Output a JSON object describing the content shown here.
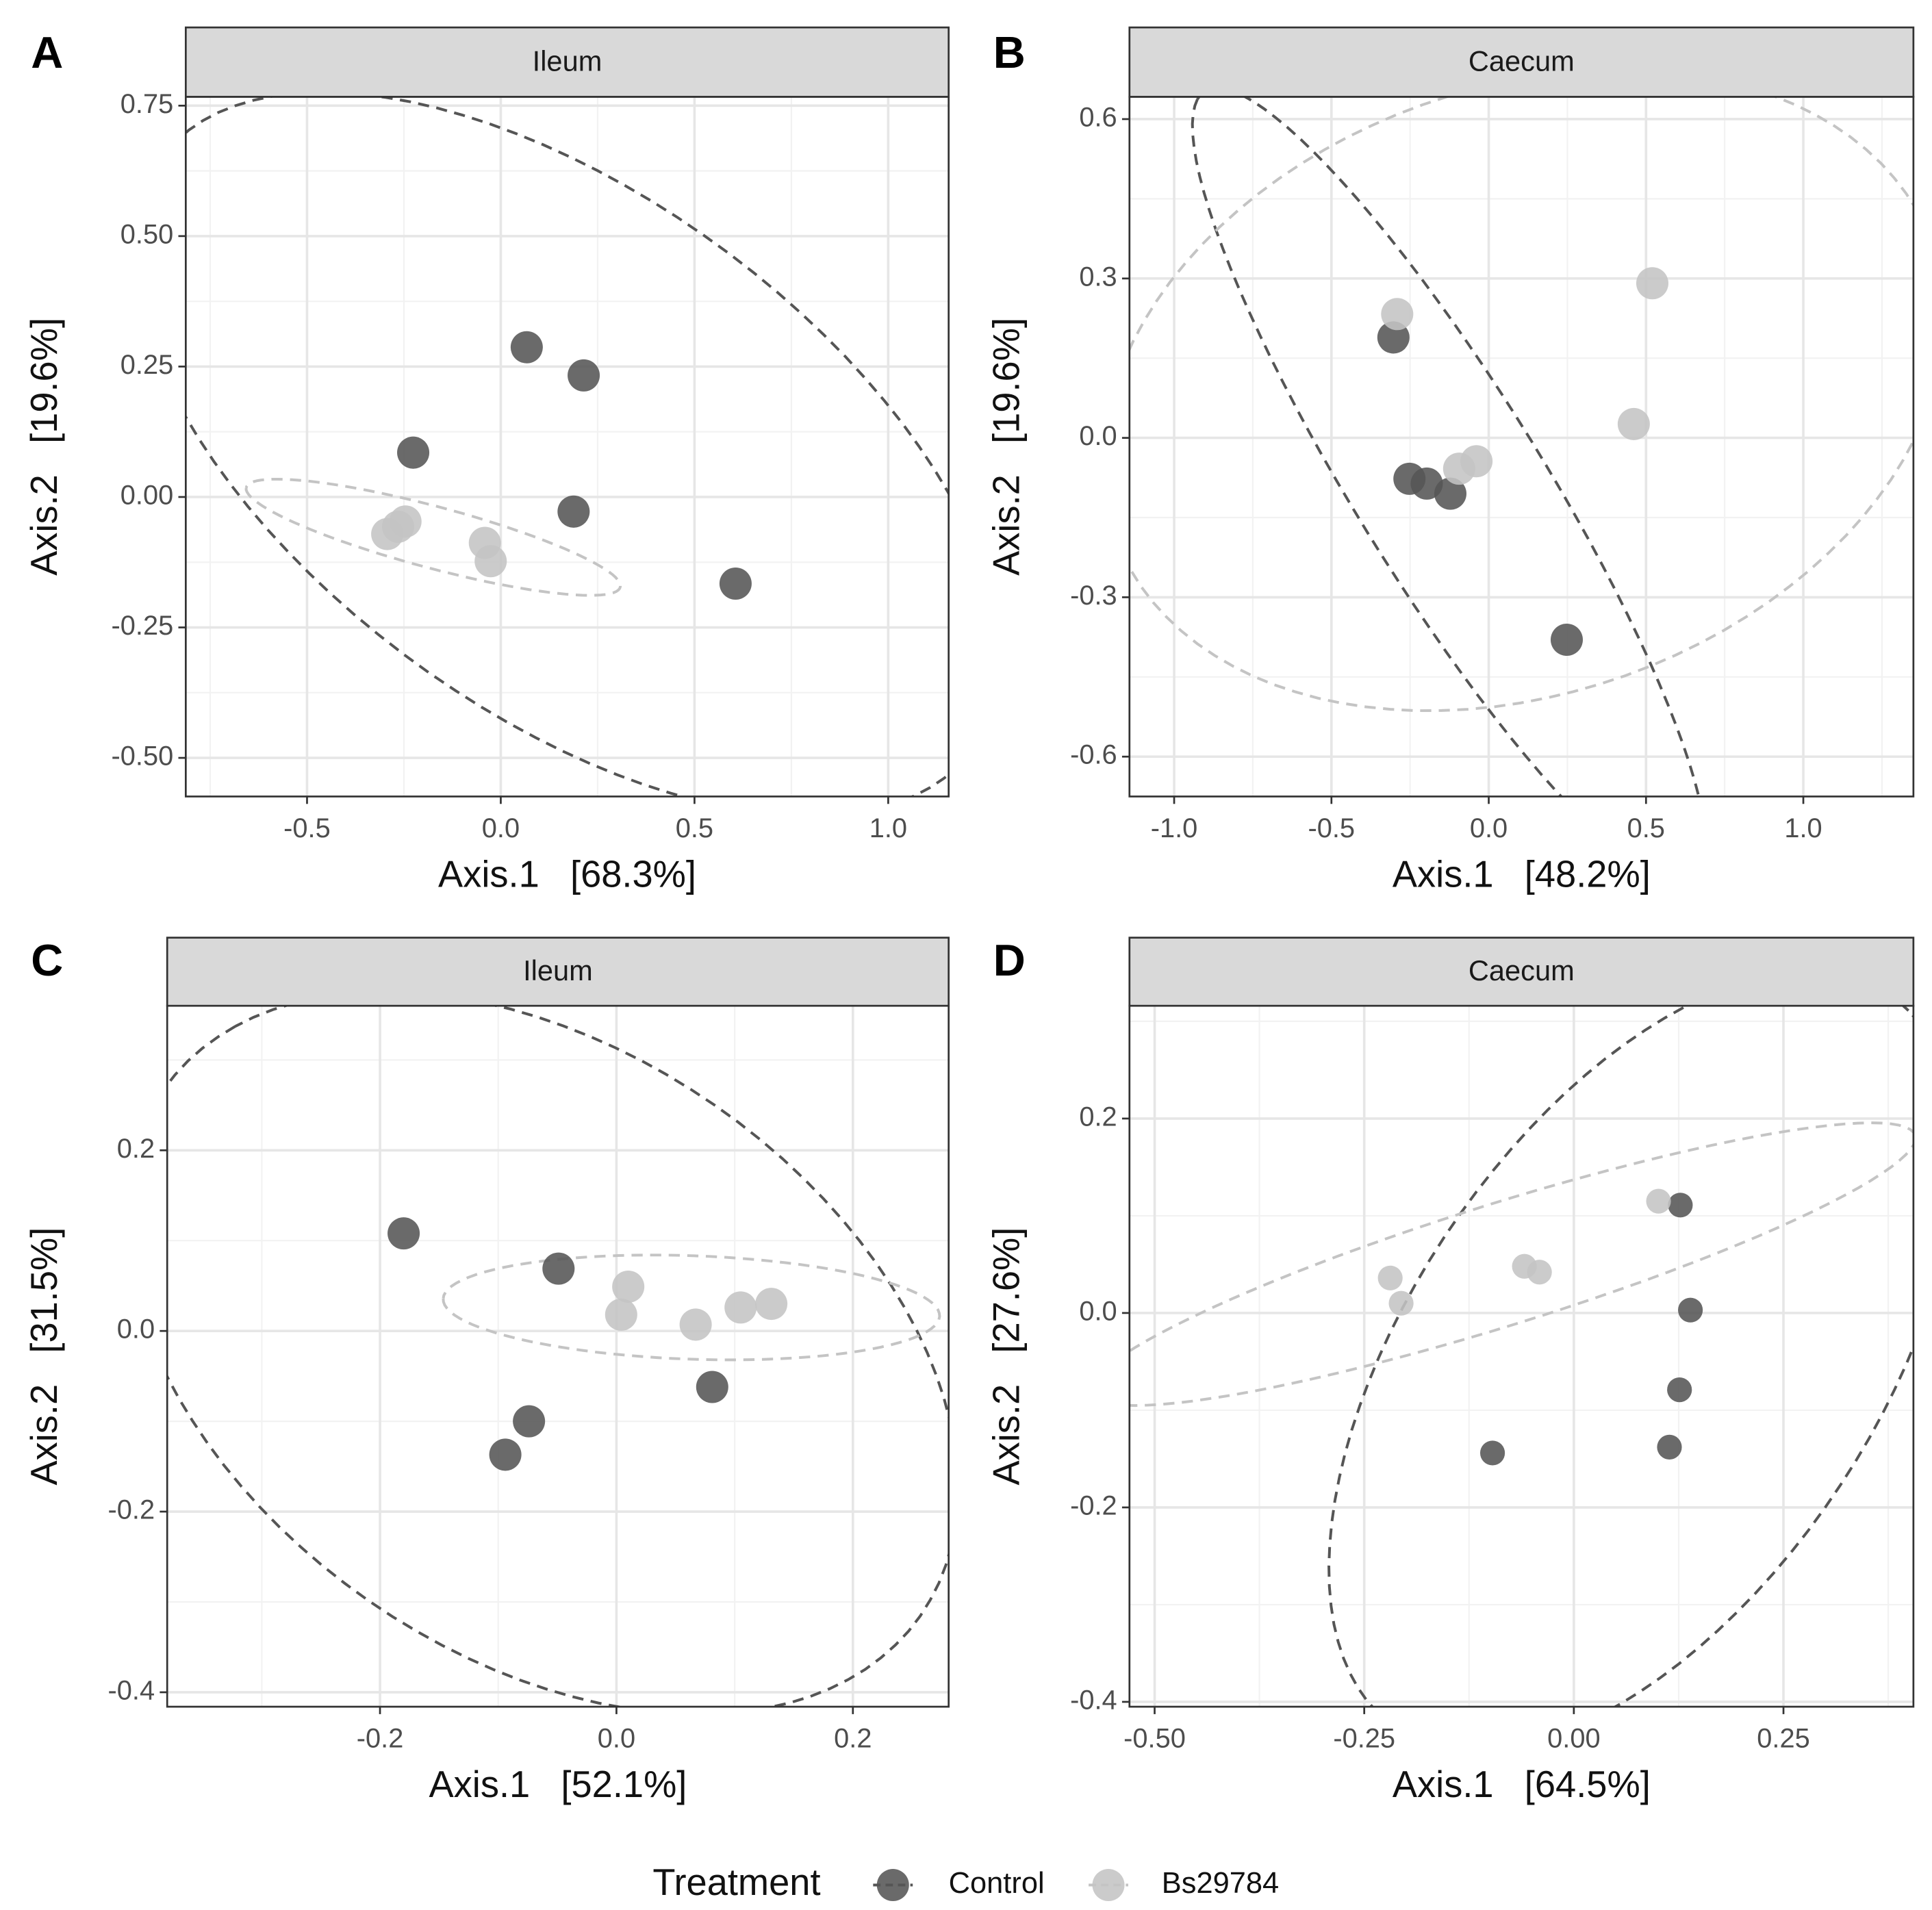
{
  "chart_data": [
    {
      "type": "scatter",
      "panel_label": "A",
      "strip": "Ileum",
      "x_label": "Axis.1   [68.3%]",
      "y_label": "Axis.2   [19.6%]",
      "xlim": [
        -0.813,
        1.156
      ],
      "ylim": [
        -0.574,
        0.767
      ],
      "xticks": [
        {
          "value": -0.5,
          "label": "-0.5"
        },
        {
          "value": 0,
          "label": "0.0"
        },
        {
          "value": 0.5,
          "label": "0.5"
        },
        {
          "value": 1,
          "label": "1.0"
        }
      ],
      "yticks": [
        {
          "value": -0.5,
          "label": "-0.50"
        },
        {
          "value": -0.25,
          "label": "-0.25"
        },
        {
          "value": 0,
          "label": "0.00"
        },
        {
          "value": 0.25,
          "label": "0.25"
        },
        {
          "value": 0.5,
          "label": "0.50"
        },
        {
          "value": 0.75,
          "label": "0.75"
        }
      ],
      "grid": true,
      "series": [
        {
          "name": "Control",
          "color": "#555555",
          "x": [
            0.067,
            0.214,
            -0.226,
            0.188,
            0.606
          ],
          "values": [
            0.287,
            0.233,
            0.085,
            -0.028,
            -0.166
          ]
        },
        {
          "name": "Bs29784",
          "color": "#c4c4c4",
          "x": [
            -0.293,
            -0.265,
            -0.246,
            -0.041,
            -0.026
          ],
          "values": [
            -0.071,
            -0.057,
            -0.047,
            -0.088,
            -0.123
          ]
        }
      ]
    },
    {
      "type": "scatter",
      "panel_label": "B",
      "strip": "Caecum",
      "x_label": "Axis.1   [48.2%]",
      "y_label": "Axis.2   [19.6%]",
      "xlim": [
        -1.142,
        1.35
      ],
      "ylim": [
        -0.675,
        0.642
      ],
      "xticks": [
        {
          "value": -1,
          "label": "-1.0"
        },
        -0.5,
        {
          "value": 0,
          "label": "0.0"
        },
        0.5,
        {
          "value": 1,
          "label": "1.0"
        }
      ],
      "yticks": [
        -0.6,
        -0.3,
        {
          "value": 0,
          "label": "0.0"
        },
        0.3,
        0.6
      ],
      "grid": true,
      "series": [
        {
          "name": "Control",
          "color": "#555555",
          "x": [
            -0.303,
            -0.252,
            -0.197,
            -0.122,
            0.248
          ],
          "values": [
            0.189,
            -0.077,
            -0.086,
            -0.105,
            -0.38
          ]
        },
        {
          "name": "Bs29784",
          "color": "#c4c4c4",
          "x": [
            -0.291,
            -0.094,
            -0.039,
            0.52,
            0.461
          ],
          "values": [
            0.233,
            -0.058,
            -0.044,
            0.291,
            0.026
          ]
        }
      ]
    },
    {
      "type": "scatter",
      "panel_label": "C",
      "strip": "Ileum",
      "x_label": "Axis.1   [52.1%]",
      "y_label": "Axis.2   [31.5%]",
      "xlim": [
        -0.38,
        0.281
      ],
      "ylim": [
        -0.416,
        0.36
      ],
      "xticks": [
        -0.2,
        {
          "value": 0,
          "label": "0.0"
        },
        0.2
      ],
      "yticks": [
        -0.4,
        -0.2,
        {
          "value": 0,
          "label": "0.0"
        },
        0.2
      ],
      "grid": true,
      "series": [
        {
          "name": "Control",
          "color": "#555555",
          "x": [
            -0.18,
            -0.049,
            -0.074,
            -0.094,
            0.081
          ],
          "values": [
            0.108,
            0.069,
            -0.1,
            -0.137,
            -0.062
          ]
        },
        {
          "name": "Bs29784",
          "color": "#c4c4c4",
          "x": [
            0.01,
            0.004,
            0.067,
            0.105,
            0.131
          ],
          "values": [
            0.049,
            0.018,
            0.007,
            0.026,
            0.03
          ]
        }
      ]
    },
    {
      "type": "scatter",
      "panel_label": "D",
      "strip": "Caecum",
      "x_label": "Axis.1   [64.5%]",
      "y_label": "Axis.2   [27.6%]",
      "xlim": [
        -0.53,
        0.405
      ],
      "ylim": [
        -0.405,
        0.316
      ],
      "xticks": [
        {
          "value": -0.5,
          "label": "-0.50"
        },
        -0.25,
        {
          "value": 0,
          "label": "0.00"
        },
        0.25
      ],
      "yticks": [
        -0.4,
        -0.2,
        {
          "value": 0,
          "label": "0.0"
        },
        0.2
      ],
      "grid": true,
      "series": [
        {
          "name": "Control",
          "color": "#555555",
          "x": [
            0.127,
            0.139,
            0.126,
            0.114,
            -0.097
          ],
          "values": [
            0.111,
            0.003,
            -0.079,
            -0.138,
            -0.144
          ]
        },
        {
          "name": "Bs29784",
          "color": "#c4c4c4",
          "x": [
            0.101,
            -0.219,
            -0.206,
            -0.059,
            -0.041
          ],
          "values": [
            0.115,
            0.036,
            0.01,
            0.048,
            0.042
          ]
        }
      ]
    }
  ],
  "legend": {
    "title": "Treatment"
  }
}
